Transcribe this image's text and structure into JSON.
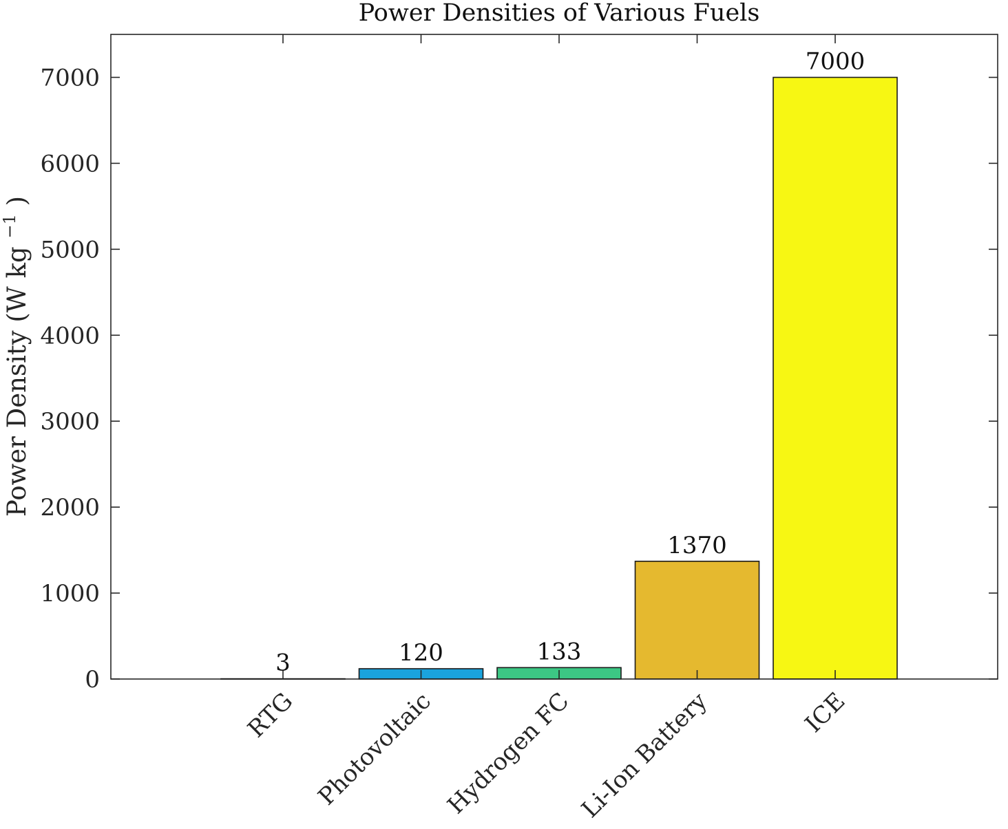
{
  "chart_data": {
    "type": "bar",
    "title": "Power Densities of Various Fuels",
    "xlabel": "",
    "ylabel": "Power Density (W kg",
    "ylabel_sup": "−1",
    "ylabel_end": ")",
    "ylim": [
      0,
      7500
    ],
    "yticks": [
      0,
      1000,
      2000,
      3000,
      4000,
      5000,
      6000,
      7000
    ],
    "categories": [
      "RTG",
      "Photovoltaic",
      "Hydrogen FC",
      "Li-Ion Battery",
      "ICE"
    ],
    "values": [
      3,
      120,
      133,
      1370,
      7000
    ],
    "data_labels": [
      "3",
      "120",
      "133",
      "1370",
      "7000"
    ],
    "colors": [
      "#0072BD",
      "#1AA3DD",
      "#3CC784",
      "#E5B92F",
      "#F7F713"
    ],
    "grid": false,
    "legend": "none"
  }
}
